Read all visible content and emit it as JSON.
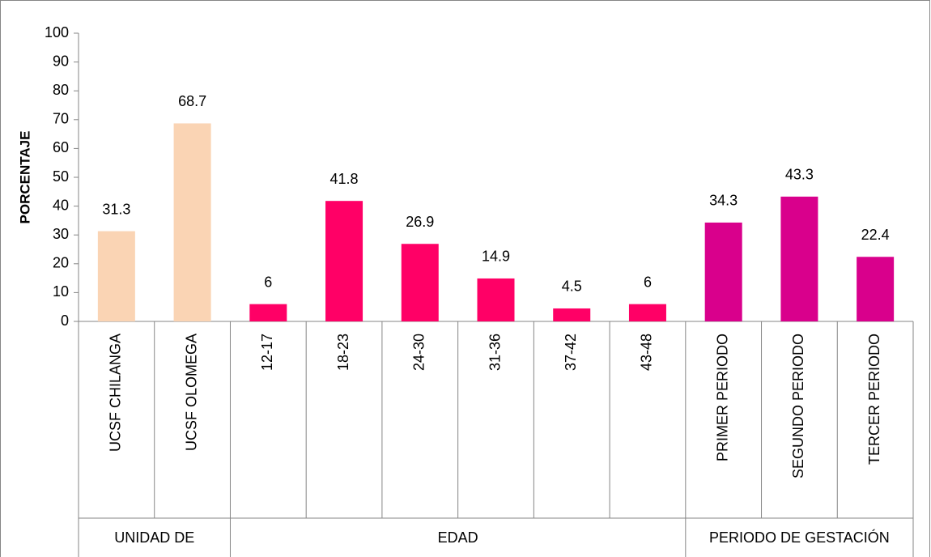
{
  "chart_data": {
    "type": "bar",
    "ylabel": "PORCENTAJE",
    "ylim": [
      0,
      100
    ],
    "yticks": [
      0,
      10,
      20,
      30,
      40,
      50,
      60,
      70,
      80,
      90,
      100
    ],
    "groups": [
      {
        "label": "UNIDAD DE",
        "color": "#fad4b4",
        "categories": [
          "UCSF CHILANGA",
          "UCSF OLOMEGA"
        ],
        "values": [
          31.3,
          68.7
        ]
      },
      {
        "label": "EDAD",
        "color": "#ff0066",
        "categories": [
          "12-17",
          "18-23",
          "24-30",
          "31-36",
          "37-42",
          "43-48"
        ],
        "values": [
          6,
          41.8,
          26.9,
          14.9,
          4.5,
          6
        ]
      },
      {
        "label": "PERIODO DE GESTACIÓN",
        "color": "#d9008c",
        "categories": [
          "PRIMER PERIODO",
          "SEGUNDO PERIODO",
          "TERCER PERIODO"
        ],
        "values": [
          34.3,
          43.3,
          22.4
        ]
      }
    ]
  }
}
